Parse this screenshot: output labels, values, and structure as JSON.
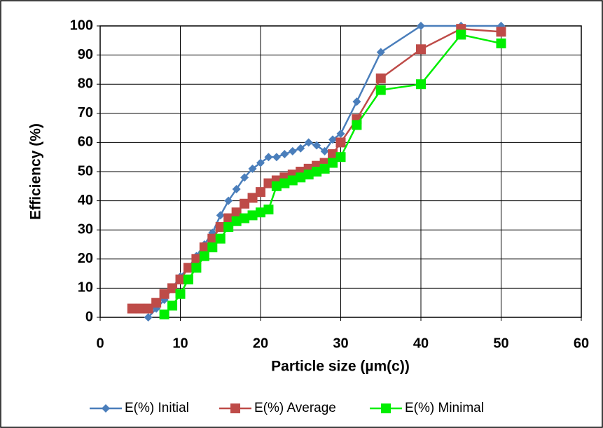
{
  "chart_data": {
    "type": "line",
    "x_label": "Particle size (µm(c))",
    "y_label": "Efficiency (%)",
    "xlim": [
      0,
      60
    ],
    "xticks": [
      0,
      10,
      20,
      30,
      40,
      50,
      60
    ],
    "ylim": [
      0,
      100
    ],
    "yticks": [
      0,
      10,
      20,
      30,
      40,
      50,
      60,
      70,
      80,
      90,
      100
    ],
    "grid": true,
    "legend": "bottom",
    "series": [
      {
        "name": "E(%) Initial",
        "color": "#4a7ebb",
        "marker": "diamond",
        "x": [
          6,
          7,
          8,
          9,
          10,
          11,
          12,
          13,
          14,
          15,
          16,
          17,
          18,
          19,
          20,
          21,
          22,
          23,
          24,
          25,
          26,
          27,
          28,
          29,
          30,
          32,
          35,
          40,
          45,
          50
        ],
        "values": [
          0,
          3,
          6,
          10,
          14,
          17,
          21,
          25,
          29,
          35,
          40,
          44,
          48,
          51,
          53,
          55,
          55,
          56,
          57,
          58,
          60,
          59,
          57,
          61,
          63,
          74,
          91,
          100,
          100,
          100
        ]
      },
      {
        "name": "E(%) Average",
        "color": "#be4b48",
        "marker": "square",
        "x": [
          4,
          5,
          6,
          7,
          8,
          9,
          10,
          11,
          12,
          13,
          14,
          15,
          16,
          17,
          18,
          19,
          20,
          21,
          22,
          23,
          24,
          25,
          26,
          27,
          28,
          29,
          30,
          32,
          35,
          40,
          45,
          50
        ],
        "values": [
          3,
          3,
          3,
          5,
          8,
          10,
          13,
          17,
          20,
          24,
          27,
          31,
          34,
          36,
          39,
          41,
          43,
          46,
          47,
          48,
          49,
          50,
          51,
          52,
          53,
          56,
          60,
          68,
          82,
          92,
          99,
          98
        ]
      },
      {
        "name": "E(%) Minimal",
        "color": "#00ee00",
        "marker": "square",
        "x": [
          8,
          9,
          10,
          11,
          12,
          13,
          14,
          15,
          16,
          17,
          18,
          19,
          20,
          21,
          22,
          23,
          24,
          25,
          26,
          27,
          28,
          29,
          30,
          32,
          35,
          40,
          45,
          50
        ],
        "values": [
          1,
          4,
          8,
          13,
          17,
          21,
          24,
          27,
          31,
          33,
          34,
          35,
          36,
          37,
          45,
          46,
          47,
          48,
          49,
          50,
          51,
          53,
          55,
          66,
          78,
          80,
          97,
          94
        ]
      }
    ]
  }
}
